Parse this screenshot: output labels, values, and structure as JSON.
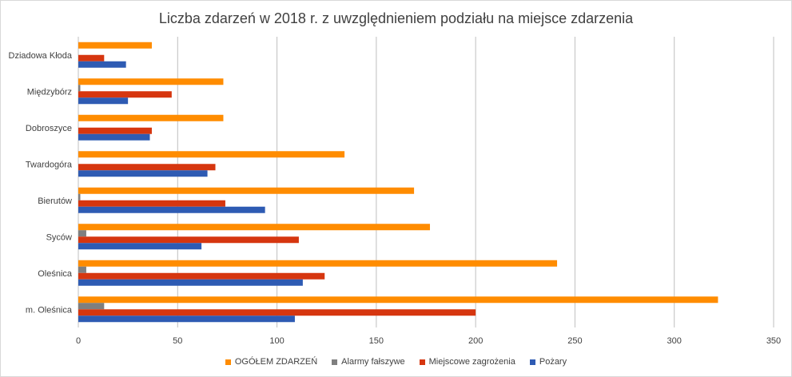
{
  "chart_data": {
    "type": "bar",
    "orientation": "horizontal",
    "title": "Liczba zdarzeń w 2018 r. z uwzględnieniem podziału na miejsce zdarzenia",
    "categories": [
      "Dziadowa Kłoda",
      "Międzybórz",
      "Dobroszyce",
      "Twardogóra",
      "Bierutów",
      "Syców",
      "Oleśnica",
      "m. Oleśnica"
    ],
    "series": [
      {
        "name": "OGÓŁEM ZDARZEŃ",
        "color": "#ff8c00",
        "values": [
          37,
          73,
          73,
          134,
          169,
          177,
          241,
          322
        ]
      },
      {
        "name": "Alarmy fałszywe",
        "color": "#7f7f7f",
        "values": [
          0,
          1,
          0,
          0,
          1,
          4,
          4,
          13
        ]
      },
      {
        "name": "Miejscowe zagrożenia",
        "color": "#d6360f",
        "values": [
          13,
          47,
          37,
          69,
          74,
          111,
          124,
          200
        ]
      },
      {
        "name": "Pożary",
        "color": "#2e5bb3",
        "values": [
          24,
          25,
          36,
          65,
          94,
          62,
          113,
          109
        ]
      }
    ],
    "xlim": [
      0,
      350
    ],
    "xticks": [
      "0",
      "50",
      "100",
      "150",
      "200",
      "250",
      "300",
      "350"
    ],
    "grid": true,
    "legend_position": "bottom"
  }
}
